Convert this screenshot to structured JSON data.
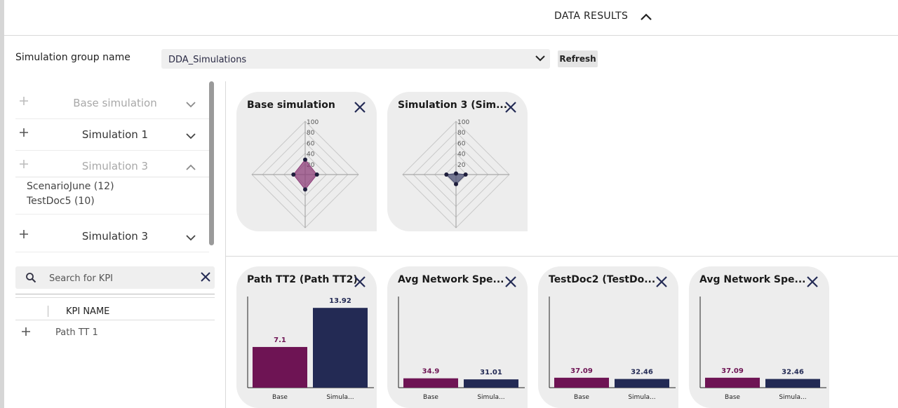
{
  "header": {
    "title": "DATA RESULTS"
  },
  "simulation_group": {
    "label": "Simulation group name",
    "value": "DDA_Simulations",
    "refresh_label": "Refresh"
  },
  "simulations": [
    {
      "name": "Base simulation"
    },
    {
      "name": "Simulation 1"
    },
    {
      "name": "Simulation 3",
      "children": [
        "ScenarioJune (12)",
        "TestDoc5 (10)"
      ]
    },
    {
      "name": "Simulation 3"
    }
  ],
  "kpi": {
    "search_placeholder": "Search for KPI",
    "column_header": "KPI NAME",
    "rows": [
      "Path TT 1"
    ]
  },
  "radar_cards": [
    {
      "title": "Base simulation"
    },
    {
      "title": "Simulation 3 (Sim..."
    }
  ],
  "bar_cards": [
    {
      "title": "Path TT2 (Path TT2)"
    },
    {
      "title": "Avg Network Spe..."
    },
    {
      "title": "TestDoc2 (TestDo..."
    },
    {
      "title": "Avg Network Spe..."
    }
  ],
  "chart_data": [
    {
      "type": "radar",
      "title": "Base simulation",
      "axis_ticks": [
        "100",
        "80",
        "60",
        "40",
        "20"
      ],
      "range": [
        0,
        100
      ],
      "values": [
        28,
        22,
        28,
        22
      ],
      "color": "#8e3f7a"
    },
    {
      "type": "radar",
      "title": "Simulation 3 (Sim...",
      "axis_ticks": [
        "100",
        "80",
        "60",
        "40",
        "20"
      ],
      "range": [
        0,
        100
      ],
      "values": [
        2,
        18,
        18,
        18
      ],
      "color": "#4a4e72"
    },
    {
      "type": "bar",
      "title": "Path TT2 (Path TT2)",
      "categories": [
        "Base",
        "Simula..."
      ],
      "values": [
        7.1,
        13.92
      ],
      "labels": [
        "7.1",
        "13.92"
      ],
      "ylim": [
        0,
        15.9
      ]
    },
    {
      "type": "bar",
      "title": "Avg Network Spe...",
      "categories": [
        "Base",
        "Simula..."
      ],
      "values": [
        34.9,
        31.01
      ],
      "labels": [
        "34.9",
        "31.01"
      ],
      "ylim": [
        0,
        340
      ]
    },
    {
      "type": "bar",
      "title": "TestDoc2 (TestDo...",
      "categories": [
        "Base",
        "Simula..."
      ],
      "values": [
        37.09,
        32.46
      ],
      "labels": [
        "37.09",
        "32.46"
      ],
      "ylim": [
        0,
        340
      ]
    },
    {
      "type": "bar",
      "title": "Avg Network Spe...",
      "categories": [
        "Base",
        "Simula..."
      ],
      "values": [
        37.09,
        32.46
      ],
      "labels": [
        "37.09",
        "32.46"
      ],
      "ylim": [
        0,
        340
      ]
    }
  ],
  "colors": {
    "base_series": "#6e1454",
    "sim_series": "#232a54",
    "radar_base_fill": "#8e3f7a",
    "radar_sim_fill": "#4a4e72",
    "point": "#1e1e3c"
  }
}
